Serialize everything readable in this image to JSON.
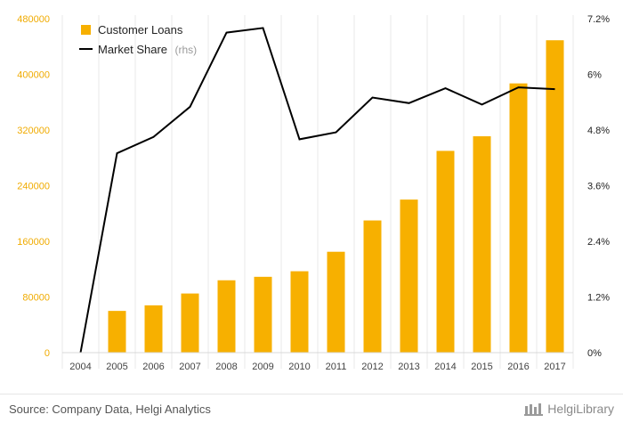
{
  "chart_data": {
    "type": "bar+line",
    "categories": [
      "2004",
      "2005",
      "2006",
      "2007",
      "2008",
      "2009",
      "2010",
      "2011",
      "2012",
      "2013",
      "2014",
      "2015",
      "2016",
      "2017"
    ],
    "series": [
      {
        "name": "Customer Loans",
        "type": "bar",
        "axis": "left",
        "color": "#f7b000",
        "values": [
          0,
          60000,
          68000,
          85000,
          104000,
          109000,
          117000,
          145000,
          190000,
          220000,
          290000,
          311000,
          387000,
          449000
        ]
      },
      {
        "name": "Market Share",
        "label_suffix": "(rhs)",
        "type": "line",
        "axis": "right",
        "color": "#000000",
        "values": [
          0.0,
          4.3,
          4.65,
          5.3,
          6.9,
          7.0,
          4.6,
          4.75,
          5.5,
          5.38,
          5.7,
          5.35,
          5.72,
          5.68
        ]
      }
    ],
    "y_left": {
      "ylim": [
        0,
        480000
      ],
      "ticks": [
        "0",
        "80000",
        "160000",
        "240000",
        "320000",
        "400000",
        "480000"
      ],
      "color": "#f0ab00"
    },
    "y_right": {
      "ylim": [
        0,
        7.2
      ],
      "ticks": [
        "0%",
        "1.2%",
        "2.4%",
        "3.6%",
        "4.8%",
        "6%",
        "7.2%"
      ]
    },
    "legend_position": "top-left",
    "grid": "vertical"
  },
  "footer": {
    "source": "Source: Company Data, Helgi Analytics",
    "brand": "HelgiLibrary"
  }
}
